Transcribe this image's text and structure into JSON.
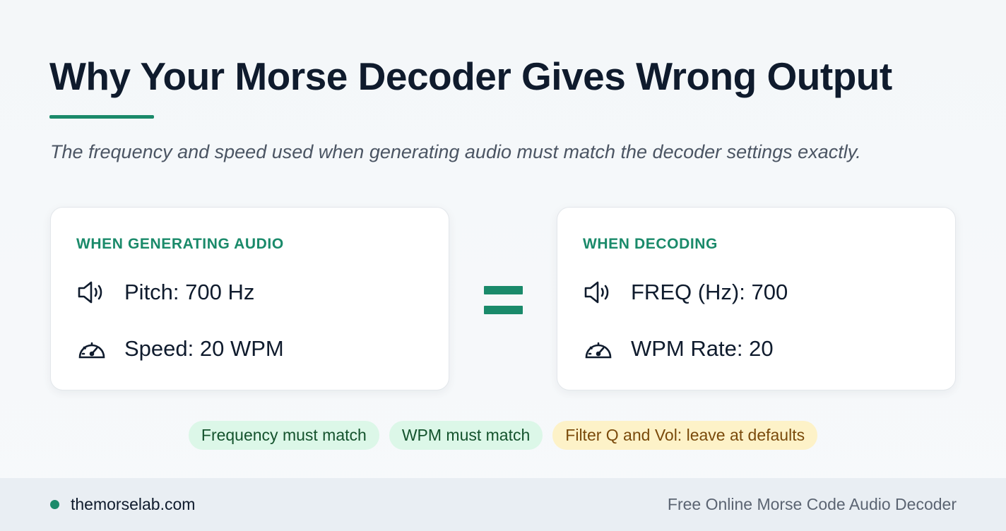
{
  "title": "Why Your Morse Decoder Gives Wrong Output",
  "subtitle": "The frequency and speed used when generating audio must match the decoder settings exactly.",
  "cards": [
    {
      "label": "WHEN GENERATING AUDIO",
      "rows": [
        {
          "icon": "speaker-icon",
          "text": "Pitch: 700 Hz"
        },
        {
          "icon": "speedometer-icon",
          "text": "Speed: 20 WPM"
        }
      ]
    },
    {
      "label": "WHEN DECODING",
      "rows": [
        {
          "icon": "speaker-icon",
          "text": "FREQ (Hz): 700"
        },
        {
          "icon": "speedometer-icon",
          "text": "WPM Rate: 20"
        }
      ]
    }
  ],
  "pills": [
    "Frequency must match",
    "WPM must match",
    "Filter Q and Vol: leave at defaults"
  ],
  "footer": {
    "site": "themorselab.com",
    "tagline": "Free Online Morse Code Audio Decoder"
  },
  "colors": {
    "accent": "#1a8a6a",
    "text": "#0f1b2d",
    "pill_green": "#dcf7e8",
    "pill_yellow": "#fdf2c8"
  }
}
